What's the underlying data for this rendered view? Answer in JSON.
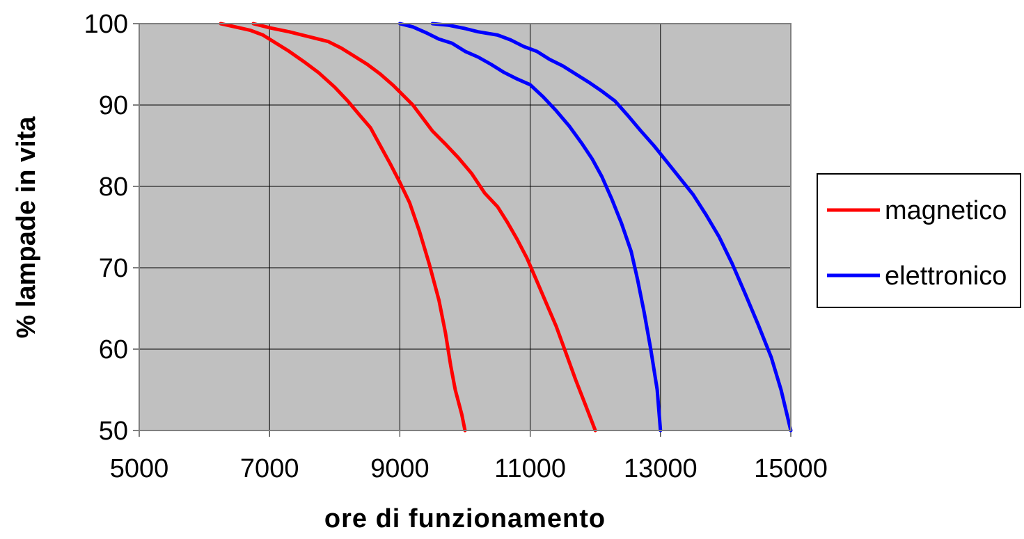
{
  "chart_data": {
    "type": "line",
    "title": "",
    "xlabel": "ore di funzionamento",
    "ylabel": "% lampade in vita",
    "xlim": [
      5000,
      15000
    ],
    "ylim": [
      50,
      100
    ],
    "xticks": [
      5000,
      7000,
      9000,
      11000,
      13000,
      15000
    ],
    "xtick_labels": [
      "5000",
      "7000",
      "9000",
      "11000",
      "13000",
      "15000"
    ],
    "yticks": [
      50,
      60,
      70,
      80,
      90,
      100
    ],
    "ytick_labels": [
      "50",
      "60",
      "70",
      "80",
      "90",
      "100"
    ],
    "grid": true,
    "plot_background": "#c0c0c0",
    "legend_position": "right",
    "legend": [
      {
        "label": "magnetico",
        "color": "#ff0000"
      },
      {
        "label": "elettronico",
        "color": "#0000ff"
      }
    ],
    "series": [
      {
        "name": "magnetico",
        "color": "#ff0000",
        "points": [
          [
            6250,
            100
          ],
          [
            6700,
            99.2
          ],
          [
            6900,
            98.6
          ],
          [
            7100,
            97.6
          ],
          [
            7300,
            96.6
          ],
          [
            7550,
            95.2
          ],
          [
            7750,
            94
          ],
          [
            8000,
            92.2
          ],
          [
            8200,
            90.5
          ],
          [
            8400,
            88.6
          ],
          [
            8550,
            87.2
          ],
          [
            8700,
            85
          ],
          [
            8850,
            82.8
          ],
          [
            9000,
            80.5
          ],
          [
            9150,
            78
          ],
          [
            9300,
            74.5
          ],
          [
            9450,
            70.5
          ],
          [
            9600,
            66
          ],
          [
            9700,
            62
          ],
          [
            9780,
            58
          ],
          [
            9850,
            55
          ],
          [
            9950,
            52
          ],
          [
            10000,
            50
          ]
        ]
      },
      {
        "name": "magnetico",
        "color": "#ff0000",
        "points": [
          [
            6750,
            100
          ],
          [
            7000,
            99.5
          ],
          [
            7300,
            99
          ],
          [
            7600,
            98.4
          ],
          [
            7900,
            97.8
          ],
          [
            8100,
            97
          ],
          [
            8300,
            96
          ],
          [
            8500,
            95
          ],
          [
            8700,
            93.8
          ],
          [
            8900,
            92.4
          ],
          [
            9050,
            91.2
          ],
          [
            9200,
            90
          ],
          [
            9350,
            88.4
          ],
          [
            9500,
            86.8
          ],
          [
            9700,
            85.2
          ],
          [
            9900,
            83.5
          ],
          [
            10100,
            81.6
          ],
          [
            10300,
            79.2
          ],
          [
            10500,
            77.5
          ],
          [
            10650,
            75.6
          ],
          [
            10800,
            73.5
          ],
          [
            10950,
            71.2
          ],
          [
            11100,
            68.4
          ],
          [
            11250,
            65.6
          ],
          [
            11400,
            62.8
          ],
          [
            11550,
            59.5
          ],
          [
            11700,
            56.2
          ],
          [
            11850,
            53.1
          ],
          [
            12000,
            50
          ]
        ]
      },
      {
        "name": "elettronico",
        "color": "#0000ff",
        "points": [
          [
            9000,
            100
          ],
          [
            9200,
            99.6
          ],
          [
            9400,
            98.9
          ],
          [
            9600,
            98.1
          ],
          [
            9800,
            97.6
          ],
          [
            10000,
            96.6
          ],
          [
            10200,
            95.9
          ],
          [
            10400,
            95
          ],
          [
            10600,
            94
          ],
          [
            10800,
            93.2
          ],
          [
            11000,
            92.5
          ],
          [
            11200,
            91
          ],
          [
            11400,
            89.3
          ],
          [
            11600,
            87.4
          ],
          [
            11800,
            85.2
          ],
          [
            11950,
            83.4
          ],
          [
            12100,
            81.2
          ],
          [
            12250,
            78.5
          ],
          [
            12400,
            75.5
          ],
          [
            12550,
            72
          ],
          [
            12650,
            68.5
          ],
          [
            12750,
            64.5
          ],
          [
            12850,
            60
          ],
          [
            12950,
            55
          ],
          [
            13000,
            50
          ]
        ]
      },
      {
        "name": "elettronico",
        "color": "#0000ff",
        "points": [
          [
            9500,
            100
          ],
          [
            9750,
            99.8
          ],
          [
            10000,
            99.4
          ],
          [
            10200,
            99
          ],
          [
            10500,
            98.6
          ],
          [
            10700,
            98
          ],
          [
            10900,
            97.2
          ],
          [
            11100,
            96.6
          ],
          [
            11300,
            95.6
          ],
          [
            11500,
            94.8
          ],
          [
            11700,
            93.8
          ],
          [
            11900,
            92.8
          ],
          [
            12100,
            91.7
          ],
          [
            12300,
            90.5
          ],
          [
            12500,
            88.7
          ],
          [
            12700,
            86.8
          ],
          [
            12900,
            85
          ],
          [
            13100,
            83
          ],
          [
            13300,
            81
          ],
          [
            13500,
            79
          ],
          [
            13700,
            76.5
          ],
          [
            13900,
            73.8
          ],
          [
            14100,
            70.5
          ],
          [
            14300,
            66.8
          ],
          [
            14500,
            63
          ],
          [
            14700,
            59
          ],
          [
            14850,
            55
          ],
          [
            15000,
            50
          ]
        ]
      }
    ]
  }
}
